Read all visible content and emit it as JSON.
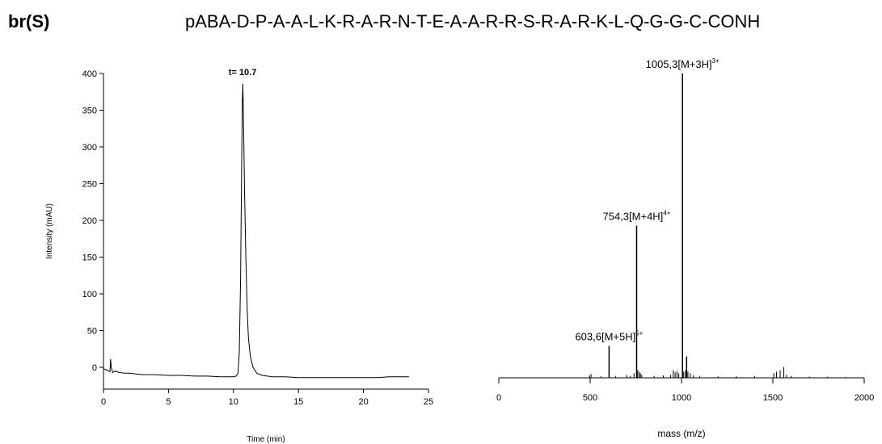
{
  "header": {
    "id_label": "br(S)",
    "sequence": "pABA-D-P-A-A-L-K-R-A-R-N-T-E-A-A-R-R-S-R-A-R-K-L-Q-G-G-C-CONH"
  },
  "chart_data": [
    {
      "type": "line",
      "title": "",
      "xlabel": "Time (min)",
      "ylabel": "Intensity (mAU)",
      "xlim": [
        0,
        25
      ],
      "ylim": [
        -30,
        400
      ],
      "xticks": [
        0,
        5,
        10,
        15,
        20,
        25
      ],
      "yticks": [
        0,
        50,
        100,
        150,
        200,
        250,
        300,
        350,
        400
      ],
      "grid": false,
      "annotations": [
        {
          "text": "t= 10.7",
          "x": 10.7,
          "y": 390
        }
      ],
      "series": [
        {
          "x": [
            0.0,
            0.3,
            0.5,
            0.55,
            0.6,
            0.7,
            0.9,
            1.2,
            1.6,
            2.0,
            2.5,
            3.0,
            4.0,
            5.0,
            6.0,
            7.0,
            8.0,
            9.0,
            9.5,
            10.0,
            10.2,
            10.35,
            10.45,
            10.55,
            10.62,
            10.68,
            10.72,
            10.78,
            10.85,
            10.95,
            11.05,
            11.15,
            11.3,
            11.5,
            11.8,
            12.2,
            13.0,
            14.0,
            15.0,
            16.0,
            17.0,
            18.0,
            19.0,
            20.0,
            21.0,
            22.0,
            23.0,
            23.5
          ],
          "y": [
            -2,
            -4,
            -6,
            11,
            0,
            -7,
            -5,
            -7,
            -8,
            -8,
            -9,
            -10,
            -10,
            -11,
            -11,
            -12,
            -12,
            -13,
            -13,
            -13,
            -12,
            -8,
            20,
            120,
            260,
            360,
            386,
            330,
            240,
            150,
            80,
            40,
            15,
            0,
            -8,
            -11,
            -13,
            -13,
            -14,
            -14,
            -14,
            -14,
            -14,
            -14,
            -14,
            -13,
            -13,
            -13
          ]
        }
      ]
    },
    {
      "type": "bar",
      "title": "",
      "xlabel": "mass (m/z)",
      "ylabel": "",
      "xlim": [
        0,
        2000
      ],
      "ylim": [
        0,
        100
      ],
      "xticks": [
        0,
        500,
        1000,
        1500,
        2000
      ],
      "grid": false,
      "peaks": [
        {
          "mz": 497,
          "rel": 0.8
        },
        {
          "mz": 505,
          "rel": 1.2
        },
        {
          "mz": 560,
          "rel": 0.5
        },
        {
          "mz": 603.6,
          "rel": 10.5
        },
        {
          "mz": 640,
          "rel": 0.6
        },
        {
          "mz": 700,
          "rel": 0.9
        },
        {
          "mz": 720,
          "rel": 0.6
        },
        {
          "mz": 740,
          "rel": 1.5
        },
        {
          "mz": 754.3,
          "rel": 50
        },
        {
          "mz": 760,
          "rel": 2.5
        },
        {
          "mz": 768,
          "rel": 2.0
        },
        {
          "mz": 775,
          "rel": 1.5
        },
        {
          "mz": 782,
          "rel": 1.0
        },
        {
          "mz": 850,
          "rel": 0.6
        },
        {
          "mz": 900,
          "rel": 0.8
        },
        {
          "mz": 940,
          "rel": 1.0
        },
        {
          "mz": 955,
          "rel": 2.5
        },
        {
          "mz": 965,
          "rel": 1.8
        },
        {
          "mz": 975,
          "rel": 2.2
        },
        {
          "mz": 985,
          "rel": 1.5
        },
        {
          "mz": 1005.3,
          "rel": 100
        },
        {
          "mz": 1012,
          "rel": 2.0
        },
        {
          "mz": 1022,
          "rel": 2.5
        },
        {
          "mz": 1028,
          "rel": 7.0
        },
        {
          "mz": 1035,
          "rel": 2.0
        },
        {
          "mz": 1048,
          "rel": 1.5
        },
        {
          "mz": 1065,
          "rel": 0.8
        },
        {
          "mz": 1100,
          "rel": 0.6
        },
        {
          "mz": 1200,
          "rel": 0.5
        },
        {
          "mz": 1300,
          "rel": 0.5
        },
        {
          "mz": 1400,
          "rel": 0.6
        },
        {
          "mz": 1505,
          "rel": 1.5
        },
        {
          "mz": 1520,
          "rel": 2.0
        },
        {
          "mz": 1540,
          "rel": 2.5
        },
        {
          "mz": 1560,
          "rel": 3.5
        },
        {
          "mz": 1575,
          "rel": 1.0
        },
        {
          "mz": 1600,
          "rel": 0.6
        },
        {
          "mz": 1700,
          "rel": 0.4
        },
        {
          "mz": 1800,
          "rel": 0.4
        },
        {
          "mz": 1900,
          "rel": 0.3
        }
      ],
      "annotations": [
        {
          "text": "1005,3[M+3H]",
          "sup": "3+",
          "mz": 1005.3
        },
        {
          "text": "754,3[M+4H]",
          "sup": "4+",
          "mz": 754.3
        },
        {
          "text": "603,6[M+5H]",
          "sup": "5+",
          "mz": 603.6
        }
      ]
    }
  ]
}
